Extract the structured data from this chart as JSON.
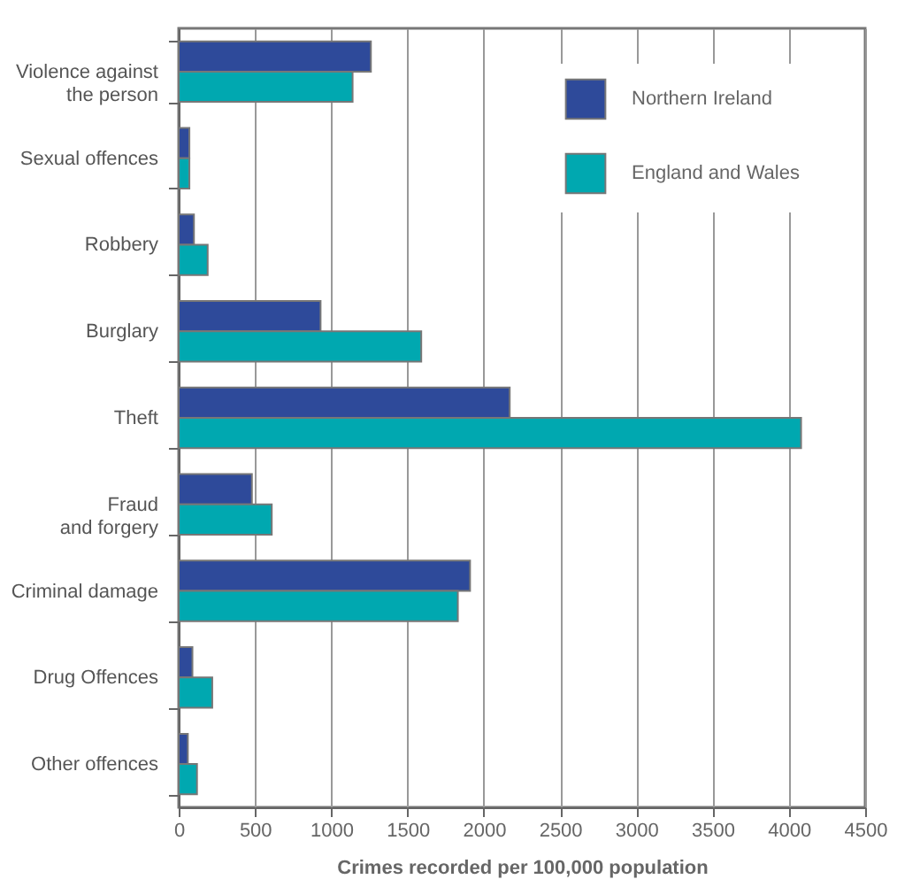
{
  "chart_data": {
    "type": "bar",
    "orientation": "horizontal",
    "xlabel": "Crimes recorded per 100,000 population",
    "categories": [
      "Violence against\nthe person",
      "Sexual offences",
      "Robbery",
      "Burglary",
      "Theft",
      "Fraud\nand forgery",
      "Criminal damage",
      "Drug Offences",
      "Other offences"
    ],
    "series": [
      {
        "name": "Northern Ireland",
        "color": "#2e4a9a",
        "values": [
          1260,
          70,
          100,
          930,
          2170,
          480,
          1910,
          90,
          60
        ]
      },
      {
        "name": "England and Wales",
        "color": "#00a8b0",
        "values": [
          1140,
          70,
          190,
          1590,
          4080,
          610,
          1830,
          220,
          120
        ]
      }
    ],
    "xlim": [
      0,
      4500
    ],
    "xticks": [
      0,
      500,
      1000,
      1500,
      2000,
      2500,
      3000,
      3500,
      4000,
      4500
    ],
    "grid": "x",
    "legend": "top right"
  }
}
